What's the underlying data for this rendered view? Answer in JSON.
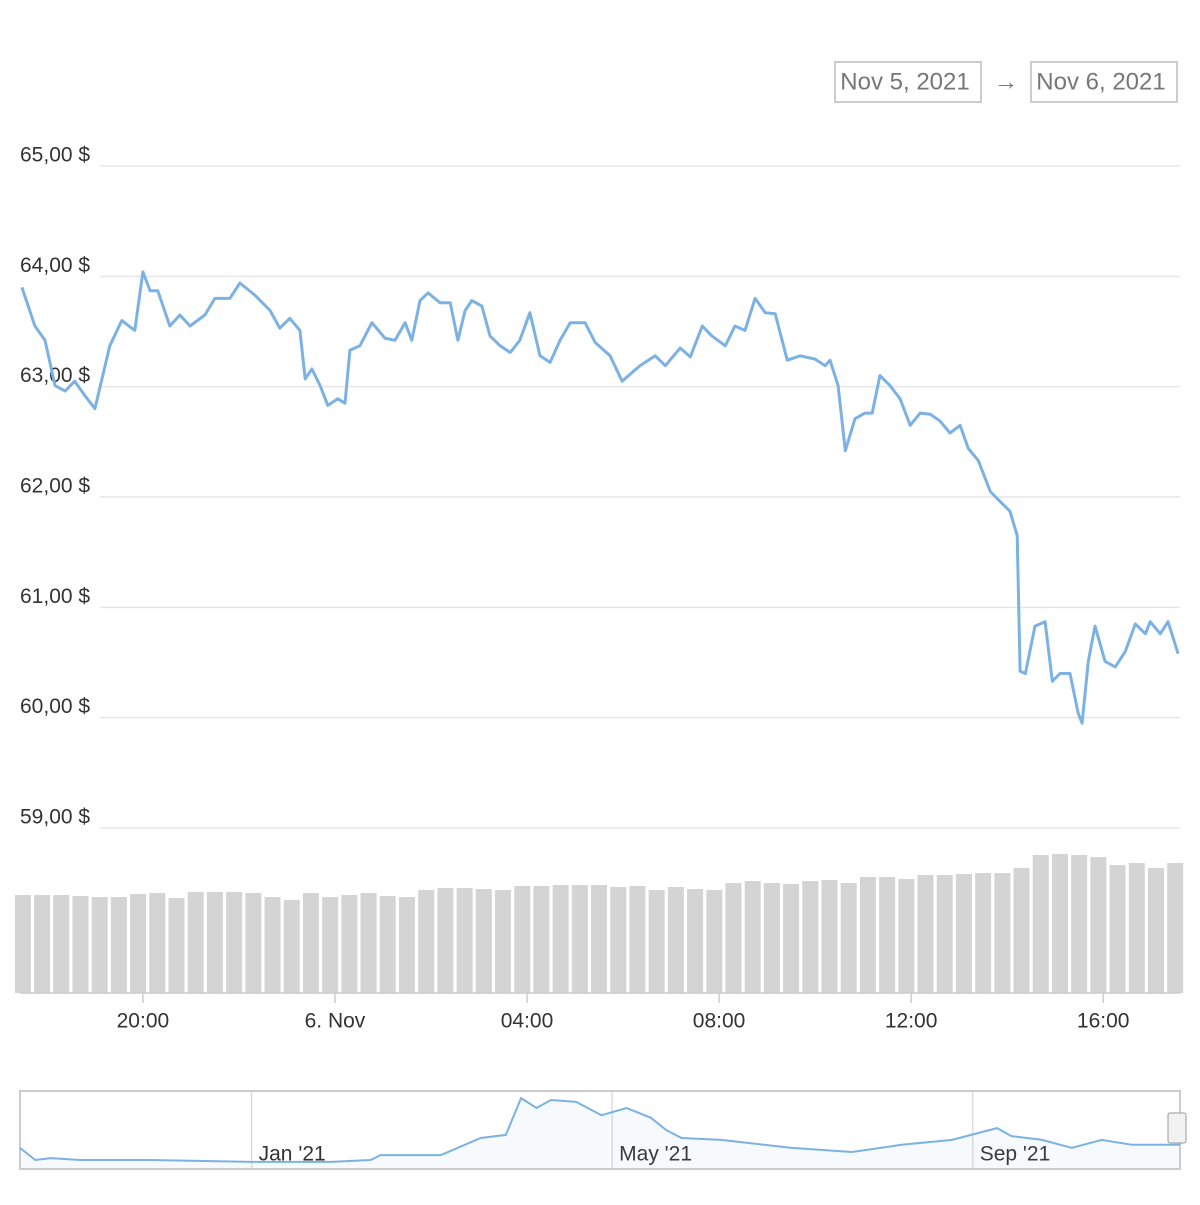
{
  "range_selector": {
    "from": "Nov 5, 2021",
    "arrow": "→",
    "to": "Nov 6, 2021"
  },
  "chart_data": {
    "type": "line",
    "x": [
      17.48,
      17.75,
      17.96,
      18.17,
      18.38,
      18.58,
      18.79,
      19.0,
      19.31,
      19.56,
      19.83,
      20.0,
      20.15,
      20.31,
      20.56,
      20.77,
      20.98,
      21.29,
      21.5,
      21.81,
      22.02,
      22.33,
      22.65,
      22.85,
      23.06,
      23.27,
      23.38,
      23.52,
      23.69,
      23.85,
      24.06,
      24.21,
      24.31,
      24.52,
      24.77,
      25.04,
      25.25,
      25.46,
      25.6,
      25.77,
      25.94,
      26.19,
      26.4,
      26.56,
      26.71,
      26.85,
      27.06,
      27.23,
      27.44,
      27.65,
      27.85,
      28.06,
      28.27,
      28.48,
      28.69,
      28.9,
      29.21,
      29.42,
      29.73,
      29.98,
      30.35,
      30.67,
      30.88,
      31.19,
      31.4,
      31.65,
      31.85,
      32.13,
      32.33,
      32.54,
      32.75,
      32.96,
      33.17,
      33.42,
      33.69,
      34.0,
      34.21,
      34.31,
      34.48,
      34.63,
      34.83,
      35.04,
      35.19,
      35.35,
      35.56,
      35.77,
      35.98,
      36.19,
      36.4,
      36.6,
      36.81,
      37.02,
      37.19,
      37.4,
      37.65,
      37.85,
      38.06,
      38.21,
      38.27,
      38.38,
      38.58,
      38.79,
      38.94,
      39.1,
      39.31,
      39.48,
      39.56,
      39.69,
      39.83,
      40.04,
      40.25,
      40.46,
      40.67,
      40.88,
      40.98,
      41.19,
      41.35,
      41.56
    ],
    "series": [
      {
        "color": "#7cb2e3",
        "values": [
          63.9,
          63.55,
          63.42,
          63.01,
          62.96,
          63.05,
          62.92,
          62.8,
          63.37,
          63.6,
          63.51,
          64.04,
          63.87,
          63.87,
          63.55,
          63.65,
          63.55,
          63.65,
          63.8,
          63.8,
          63.94,
          63.83,
          63.69,
          63.53,
          63.62,
          63.51,
          63.07,
          63.16,
          63.01,
          62.83,
          62.89,
          62.85,
          63.33,
          63.37,
          63.58,
          63.44,
          63.42,
          63.58,
          63.42,
          63.78,
          63.85,
          63.76,
          63.76,
          63.42,
          63.69,
          63.78,
          63.73,
          63.46,
          63.37,
          63.31,
          63.42,
          63.67,
          63.28,
          63.22,
          63.42,
          63.58,
          63.58,
          63.4,
          63.28,
          63.05,
          63.19,
          63.28,
          63.19,
          63.35,
          63.27,
          63.55,
          63.46,
          63.37,
          63.55,
          63.51,
          63.8,
          63.67,
          63.66,
          63.24,
          63.28,
          63.25,
          63.19,
          63.24,
          63.01,
          62.42,
          62.71,
          62.76,
          62.76,
          63.1,
          63.01,
          62.89,
          62.65,
          62.76,
          62.75,
          62.69,
          62.58,
          62.65,
          62.44,
          62.33,
          62.05,
          61.96,
          61.87,
          61.65,
          60.42,
          60.4,
          60.83,
          60.87,
          60.33,
          60.4,
          60.4,
          60.04,
          59.95,
          60.51,
          60.83,
          60.51,
          60.46,
          60.6,
          60.85,
          60.76,
          60.87,
          60.76,
          60.87,
          60.58
        ]
      }
    ],
    "xlim": [
      17.44,
      41.6
    ],
    "xticks": [
      {
        "value": 20,
        "label": "20:00"
      },
      {
        "value": 24,
        "label": "6. Nov"
      },
      {
        "value": 28,
        "label": "04:00"
      },
      {
        "value": 32,
        "label": "08:00"
      },
      {
        "value": 36,
        "label": "12:00"
      },
      {
        "value": 40,
        "label": "16:00"
      }
    ],
    "ylim": [
      59,
      65
    ],
    "yticks": [
      {
        "value": 65,
        "label": "65,00 $"
      },
      {
        "value": 64,
        "label": "64,00 $"
      },
      {
        "value": 63,
        "label": "63,00 $"
      },
      {
        "value": 62,
        "label": "62,00 $"
      },
      {
        "value": 61,
        "label": "61,00 $"
      },
      {
        "value": 60,
        "label": "60,00 $"
      },
      {
        "value": 59,
        "label": "59,00 $"
      }
    ],
    "grid": true,
    "volume": {
      "color": "#d4d4d4",
      "x": [
        17.5,
        17.9,
        18.3,
        18.7,
        19.1,
        19.5,
        19.9,
        20.3,
        20.7,
        21.1,
        21.5,
        21.9,
        22.3,
        22.7,
        23.1,
        23.5,
        23.9,
        24.3,
        24.7,
        25.1,
        25.5,
        25.9,
        26.3,
        26.7,
        27.1,
        27.5,
        27.9,
        28.3,
        28.7,
        29.1,
        29.5,
        29.9,
        30.3,
        30.7,
        31.1,
        31.5,
        31.9,
        32.3,
        32.7,
        33.1,
        33.5,
        33.9,
        34.3,
        34.7,
        35.1,
        35.5,
        35.9,
        36.3,
        36.7,
        37.1,
        37.5,
        37.9,
        38.3,
        38.7,
        39.1,
        39.5,
        39.9,
        40.3,
        40.7,
        41.1,
        41.5
      ],
      "values": [
        98,
        98,
        98,
        97,
        96,
        96,
        99,
        100,
        95,
        101,
        101,
        101,
        100,
        96,
        93,
        100,
        96,
        98,
        100,
        97,
        96,
        103,
        105,
        105,
        104,
        103,
        107,
        107,
        108,
        108,
        108,
        106,
        107,
        103,
        106,
        104,
        103,
        110,
        112,
        110,
        109,
        112,
        113,
        110,
        116,
        116,
        114,
        118,
        118,
        119,
        120,
        120,
        125,
        138,
        139,
        138,
        136,
        128,
        130,
        125,
        130
      ],
      "ylim": [
        0,
        165
      ]
    },
    "navigator": {
      "color": "#7cb2e3",
      "x": [
        -2.57,
        -2.4,
        -2.23,
        -1.9,
        -1.12,
        0,
        0.88,
        1.32,
        1.43,
        2.1,
        2.54,
        2.82,
        2.99,
        3.16,
        3.32,
        3.6,
        3.88,
        4.16,
        4.43,
        4.6,
        4.77,
        5.21,
        5.99,
        6.66,
        7.21,
        7.77,
        8.27,
        8.43,
        8.77,
        9.1,
        9.43,
        9.77,
        10.3
      ],
      "values": [
        53,
        21,
        26,
        21,
        21,
        16,
        16,
        21,
        34,
        34,
        79,
        87,
        184,
        158,
        179,
        174,
        139,
        158,
        132,
        100,
        79,
        74,
        53,
        42,
        61,
        74,
        105,
        84,
        74,
        53,
        74,
        61,
        61
      ],
      "xlim": [
        -2.57,
        10.3
      ],
      "ylim": [
        0,
        200
      ],
      "xticks": [
        {
          "value": 0,
          "label": "Jan '21"
        },
        {
          "value": 4,
          "label": "May '21"
        },
        {
          "value": 8,
          "label": "Sep '21"
        }
      ]
    }
  }
}
